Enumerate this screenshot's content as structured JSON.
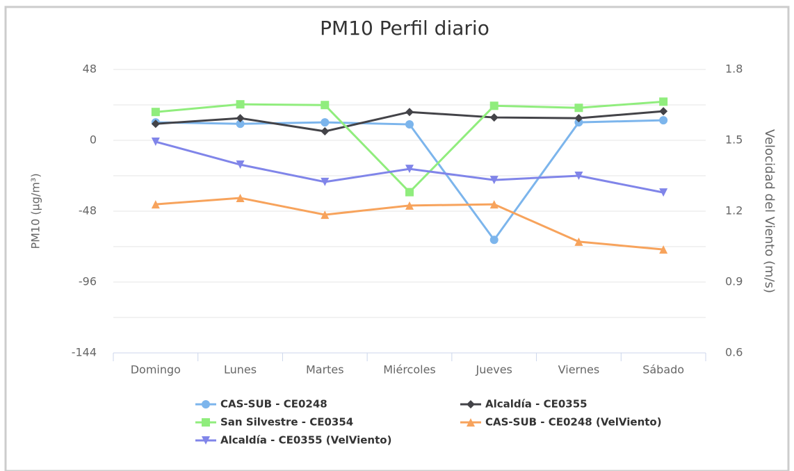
{
  "chart_data": {
    "type": "line",
    "title": "PM10 Perfil diario",
    "ylabel": "PM10 (µg/m³)",
    "y2label": "Velocidad del Viento (m/s)",
    "categories": [
      "Domingo",
      "Lunes",
      "Martes",
      "Miércoles",
      "Jueves",
      "Viernes",
      "Sábado"
    ],
    "ylim": [
      -144,
      48
    ],
    "yticks": [
      -144,
      -96,
      -48,
      0,
      48
    ],
    "y2lim": [
      0.6,
      1.8
    ],
    "y2ticks": [
      0.6,
      0.9,
      1.2,
      1.5,
      1.8
    ],
    "grid": true,
    "legend": "bottom",
    "series": [
      {
        "name": "CAS-SUB - CE0248",
        "color": "#7cb5ec",
        "marker": "circle",
        "values": [
          12.2,
          11.2,
          12.2,
          10.8,
          -67.4,
          12.2,
          13.6
        ]
      },
      {
        "name": "Alcaldía - CE0355",
        "color": "#434348",
        "marker": "diamond",
        "values": [
          11.2,
          15,
          6.1,
          19.2,
          15.5,
          15,
          19.7
        ]
      },
      {
        "name": "San Silvestre - CE0354",
        "color": "#90ed7d",
        "marker": "square",
        "values": [
          19.2,
          24.4,
          23.9,
          -35.1,
          23.4,
          22,
          26.2
        ]
      },
      {
        "name": "CAS-SUB - CE0248 (VelViento)",
        "color": "#f7a35c",
        "marker": "triangle",
        "axis": "y2",
        "values": [
          1.229,
          1.256,
          1.185,
          1.224,
          1.229,
          1.071,
          1.038
        ]
      },
      {
        "name": "Alcaldía - CE0355 (VelViento)",
        "color": "#8085e9",
        "marker": "triangle-down",
        "axis": "y2",
        "values": [
          1.494,
          1.397,
          1.324,
          1.379,
          1.332,
          1.35,
          1.279
        ]
      }
    ]
  }
}
